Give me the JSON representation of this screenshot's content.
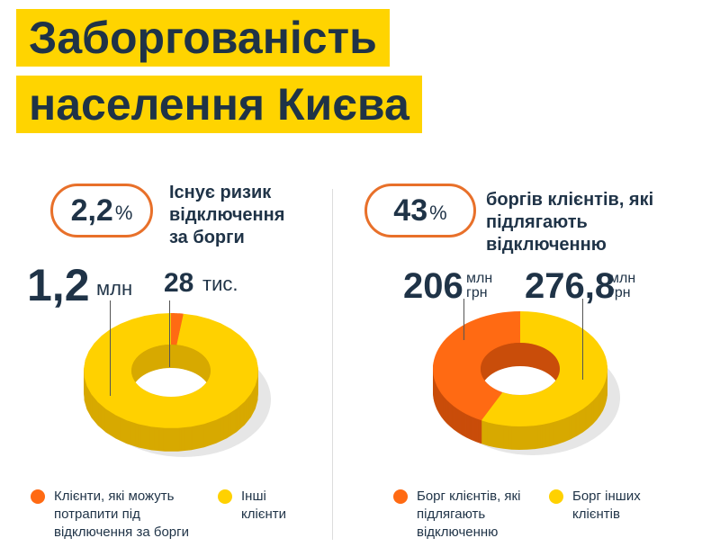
{
  "title": {
    "line1": "Заборгованість",
    "line2": "населення Києва"
  },
  "colors": {
    "orange": "#ff6a13",
    "yellow": "#ffd100",
    "orange_dark": "#c94d0a",
    "yellow_dark": "#d7a900"
  },
  "chart_data": [
    {
      "type": "pie",
      "variant": "3d-donut",
      "highlight": {
        "value": "2,2",
        "unit": "%",
        "text": "Існує ризик відключення за борги"
      },
      "slices": [
        {
          "name": "Клієнти, які можуть потрапити під відключення за борги",
          "value": 28,
          "label": "28",
          "unit": "тис.",
          "color": "#ff6a13"
        },
        {
          "name": "Інші клієнти",
          "value": 1200,
          "label": "1,2",
          "unit": "млн",
          "color": "#ffd100"
        }
      ]
    },
    {
      "type": "pie",
      "variant": "3d-donut",
      "highlight": {
        "value": "43",
        "unit": "%",
        "text": "боргів клієнтів, які підлягають відключенню"
      },
      "slices": [
        {
          "name": "Борг клієнтів, які підлягають відключенню",
          "value": 206,
          "label": "206",
          "unit": "млн грн",
          "color": "#ff6a13"
        },
        {
          "name": "Борг інших клієнтів",
          "value": 276.8,
          "label": "276,8",
          "unit": "млн грн",
          "color": "#ffd100"
        }
      ]
    }
  ],
  "units": {
    "mln": "млн",
    "grn": "грн"
  }
}
